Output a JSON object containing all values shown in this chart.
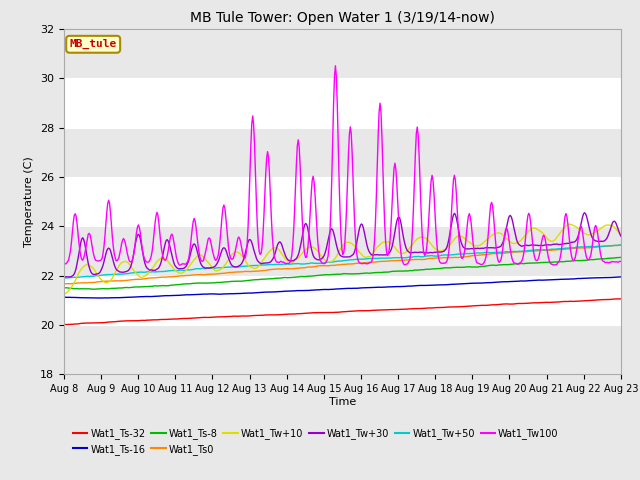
{
  "title": "MB Tule Tower: Open Water 1 (3/19/14-now)",
  "xlabel": "Time",
  "ylabel": "Temperature (C)",
  "ylim": [
    18,
    32
  ],
  "yticks": [
    18,
    20,
    22,
    24,
    26,
    28,
    30,
    32
  ],
  "fig_bg_color": "#e8e8e8",
  "plot_bg_color": "#ffffff",
  "n_points": 600,
  "series_colors": {
    "Wat1_Ts-32": "#ff0000",
    "Wat1_Ts-16": "#0000cc",
    "Wat1_Ts-8": "#00bb00",
    "Wat1_Ts0": "#ff8800",
    "Wat1_Tw+10": "#dddd00",
    "Wat1_Tw+30": "#9900cc",
    "Wat1_Tw+50": "#00cccc",
    "Wat1_Tw100": "#ff00ff"
  },
  "annotation_box": {
    "text": "MB_tule",
    "facecolor": "#ffffcc",
    "edgecolor": "#aa8800",
    "textcolor": "#cc0000"
  },
  "legend_order_row1": [
    "Wat1_Ts-32",
    "Wat1_Ts-16",
    "Wat1_Ts-8",
    "Wat1_Ts0",
    "Wat1_Tw+10",
    "Wat1_Tw+30"
  ],
  "legend_order_row2": [
    "Wat1_Tw+50",
    "Wat1_Tw100"
  ]
}
